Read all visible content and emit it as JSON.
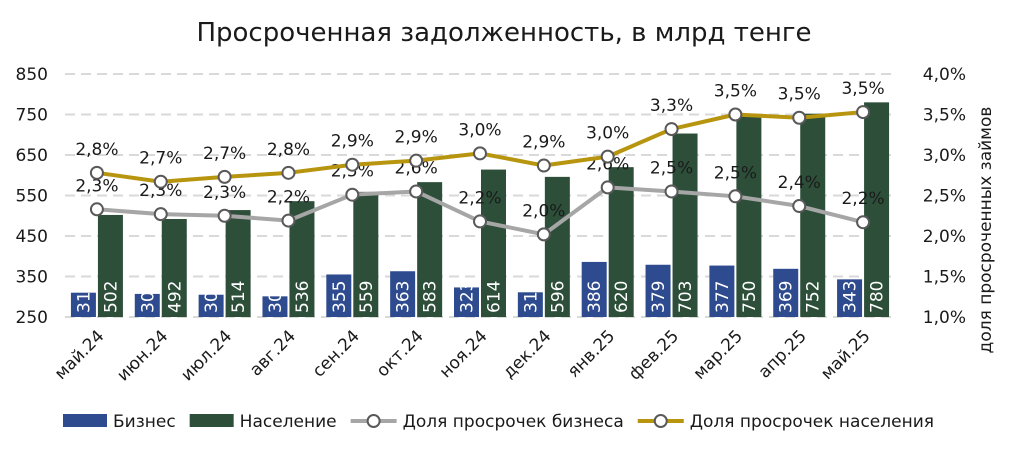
{
  "chart_data": {
    "type": "bar",
    "title": "Просроченная задолженность, в млрд тенге",
    "xlabel": "",
    "ylabel": "",
    "y2label": "доля просроченных займов",
    "categories": [
      "май.24",
      "июн.24",
      "июл.24",
      "авг.24",
      "сен.24",
      "окт.24",
      "ноя.24",
      "дек.24",
      "янв.25",
      "фев.25",
      "мар.25",
      "апр.25",
      "май.25"
    ],
    "ylim": [
      250,
      850
    ],
    "yticks": [
      "250",
      "350",
      "450",
      "550",
      "650",
      "750",
      "850"
    ],
    "y2lim": [
      1.0,
      4.0
    ],
    "y2ticks": [
      "1,0%",
      "1,5%",
      "2,0%",
      "2,5%",
      "3,0%",
      "3,5%",
      "4,0%"
    ],
    "grid": true,
    "legend_position": "bottom",
    "series": [
      {
        "name": "Бизнес",
        "kind": "bar",
        "axis": "left",
        "color": "#2f4b8f",
        "values": [
          310,
          307,
          305,
          301,
          355,
          363,
          323,
          311,
          386,
          379,
          377,
          369,
          343
        ],
        "labels": [
          "310",
          "307",
          "305",
          "301",
          "355",
          "363",
          "323",
          "311",
          "386",
          "379",
          "377",
          "369",
          "343"
        ]
      },
      {
        "name": "Население",
        "kind": "bar",
        "axis": "left",
        "color": "#2d4f3a",
        "values": [
          502,
          492,
          514,
          536,
          559,
          583,
          614,
          596,
          620,
          703,
          750,
          752,
          780
        ],
        "labels": [
          "502",
          "492",
          "514",
          "536",
          "559",
          "583",
          "614",
          "596",
          "620",
          "703",
          "750",
          "752",
          "780"
        ]
      },
      {
        "name": "Доля просрочек бизнеса",
        "kind": "line",
        "axis": "right",
        "color": "#a6a6a6",
        "values": [
          2.33,
          2.27,
          2.25,
          2.19,
          2.51,
          2.55,
          2.18,
          2.02,
          2.6,
          2.55,
          2.49,
          2.37,
          2.17
        ],
        "labels": [
          "2,3%",
          "2,3%",
          "2,3%",
          "2,2%",
          "2,5%",
          "2,6%",
          "2,2%",
          "2,0%",
          "2,6%",
          "2,5%",
          "2,5%",
          "2,4%",
          "2,2%"
        ]
      },
      {
        "name": "Доля просрочек населения",
        "kind": "line",
        "axis": "right",
        "color": "#b8950f",
        "values": [
          2.78,
          2.67,
          2.73,
          2.78,
          2.88,
          2.93,
          3.02,
          2.87,
          2.98,
          3.32,
          3.5,
          3.46,
          3.53
        ],
        "labels": [
          "2,8%",
          "2,7%",
          "2,7%",
          "2,8%",
          "2,9%",
          "2,9%",
          "3,0%",
          "2,9%",
          "3,0%",
          "3,3%",
          "3,5%",
          "3,5%",
          "3,5%"
        ]
      }
    ]
  }
}
